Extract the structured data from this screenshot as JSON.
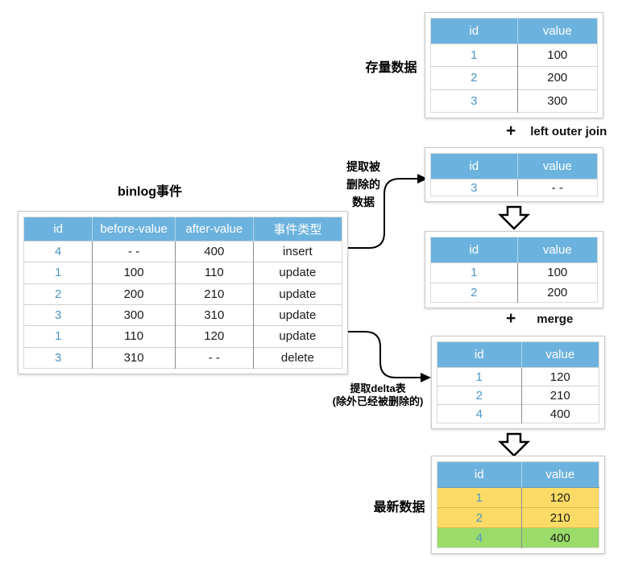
{
  "labels": {
    "stock_data": "存量数据",
    "binlog_title": "binlog事件",
    "latest_data": "最新数据",
    "extract_deleted_l1": "提取被",
    "extract_deleted_l2": "删除的",
    "extract_deleted_l3": "数据",
    "extract_delta_l1": "提取delta表",
    "extract_delta_l2": "(除外已经被删除的)"
  },
  "ops": {
    "join": {
      "plus": "+",
      "text": "left outer join"
    },
    "merge": {
      "plus": "+",
      "text": "merge"
    }
  },
  "colors": {
    "table_header_blue": "#6CB2DE",
    "id_text_blue": "#4E96C6",
    "row_yellow": "#FBDB65",
    "row_green": "#9ADB69",
    "arrow_black": "#000000"
  },
  "tables": {
    "binlog": {
      "columns": [
        "id",
        "before-value",
        "after-value",
        "事件类型"
      ],
      "rows": [
        [
          "4",
          "- -",
          "400",
          "insert"
        ],
        [
          "1",
          "100",
          "110",
          "update"
        ],
        [
          "2",
          "200",
          "210",
          "update"
        ],
        [
          "3",
          "300",
          "310",
          "update"
        ],
        [
          "1",
          "110",
          "120",
          "update"
        ],
        [
          "3",
          "310",
          "- -",
          "delete"
        ]
      ]
    },
    "stock": {
      "columns": [
        "id",
        "value"
      ],
      "rows": [
        [
          "1",
          "100"
        ],
        [
          "2",
          "200"
        ],
        [
          "3",
          "300"
        ]
      ]
    },
    "deleted": {
      "columns": [
        "id",
        "value"
      ],
      "rows": [
        [
          "3",
          "- -"
        ]
      ]
    },
    "joined": {
      "columns": [
        "id",
        "value"
      ],
      "rows": [
        [
          "1",
          "100"
        ],
        [
          "2",
          "200"
        ]
      ]
    },
    "delta": {
      "columns": [
        "id",
        "value"
      ],
      "rows": [
        [
          "1",
          "120"
        ],
        [
          "2",
          "210"
        ],
        [
          "4",
          "400"
        ]
      ]
    },
    "latest": {
      "columns": [
        "id",
        "value"
      ],
      "rows": [
        [
          "1",
          "120"
        ],
        [
          "2",
          "210"
        ],
        [
          "4",
          "400"
        ]
      ],
      "row_classes": [
        "row-yellow",
        "row-yellow",
        "row-green"
      ]
    }
  }
}
